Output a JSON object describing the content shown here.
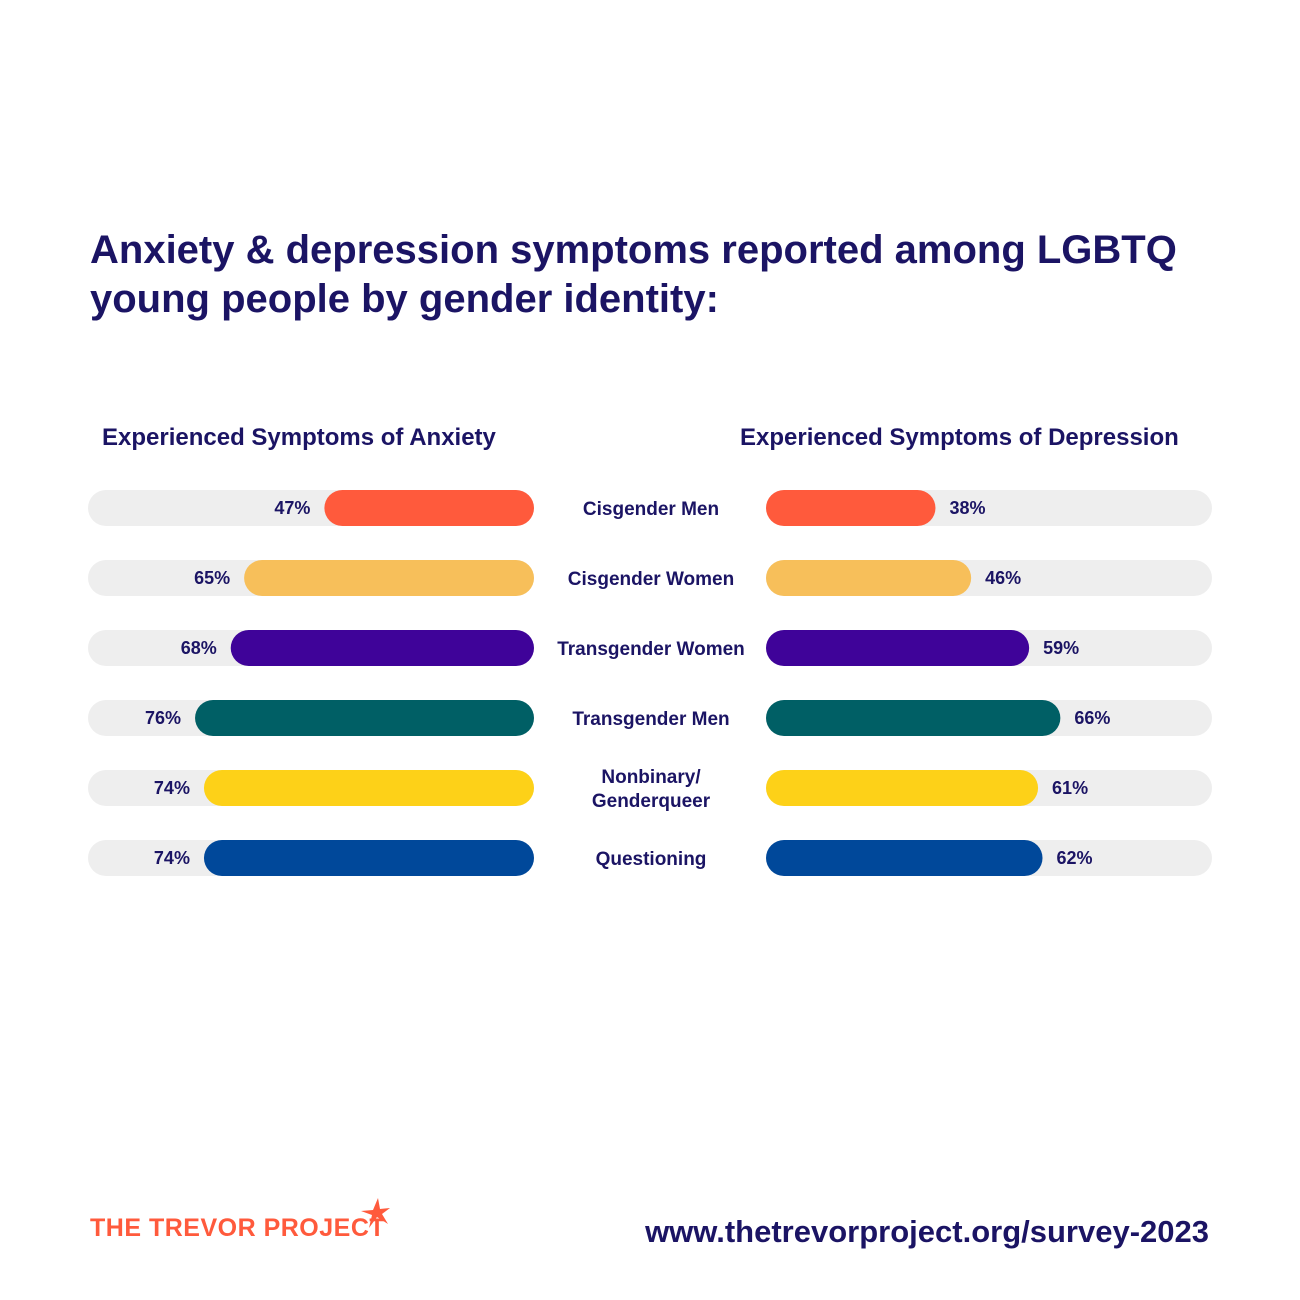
{
  "title": "Anxiety & depression symptoms reported among LGBTQ young people by gender identity:",
  "chart_data": {
    "type": "bar",
    "categories": [
      "Cisgender Men",
      "Cisgender Women",
      "Transgender Women",
      "Transgender Men",
      "Nonbinary/\nGenderqueer",
      "Questioning"
    ],
    "series": [
      {
        "name": "Experienced Symptoms of Anxiety",
        "values": [
          47,
          65,
          68,
          76,
          74,
          74
        ],
        "labels": [
          "47%",
          "65%",
          "68%",
          "76%",
          "74%",
          "74%"
        ]
      },
      {
        "name": "Experienced Symptoms of Depression",
        "values": [
          38,
          46,
          59,
          66,
          61,
          62
        ],
        "labels": [
          "38%",
          "46%",
          "59%",
          "66%",
          "61%",
          "62%"
        ]
      }
    ],
    "colors": [
      "#ff5a3c",
      "#f7bf5a",
      "#3f0399",
      "#005f65",
      "#fdd118",
      "#00489a"
    ],
    "track_color": "#eeeeee",
    "ylim": [
      0,
      100
    ]
  },
  "footer": {
    "logo_text": "THE TREVOR PROJECT",
    "url": "www.thetrevorproject.org/survey-2023"
  },
  "colors": {
    "heading": "#1b1464",
    "brand": "#ff5a3c"
  }
}
